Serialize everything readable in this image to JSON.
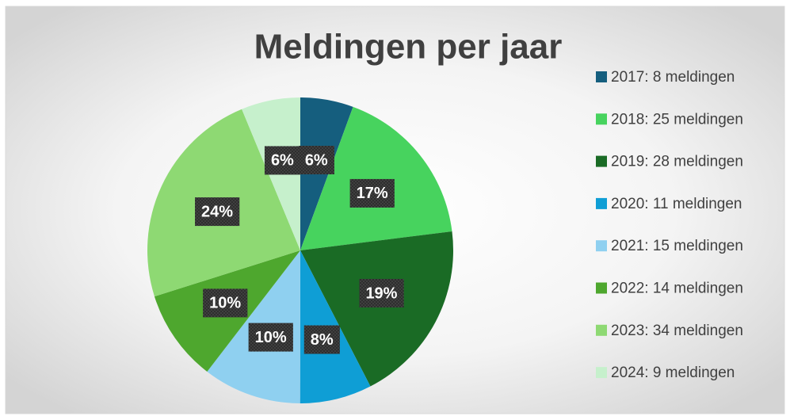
{
  "chart_data": {
    "type": "pie",
    "title": "Meldingen per jaar",
    "categories": [
      "2017: 8 meldingen",
      "2018: 25 meldingen",
      "2019: 28 meldingen",
      "2020: 11 meldingen",
      "2021: 15 meldingen",
      "2022: 14 meldingen",
      "2023: 34 meldingen",
      "2024: 9 meldingen"
    ],
    "values": [
      5.6,
      17.4,
      19.4,
      7.6,
      10.4,
      9.7,
      23.6,
      6.25
    ],
    "value_labels": [
      "6%",
      "17%",
      "19%",
      "8%",
      "10%",
      "10%",
      "24%",
      "6%"
    ],
    "colors": [
      "#155e7e",
      "#47d35e",
      "#1a6b25",
      "#0f9ed5",
      "#8fd0f0",
      "#4ea72e",
      "#8ed973",
      "#c6f0cc"
    ],
    "legend": "right"
  }
}
